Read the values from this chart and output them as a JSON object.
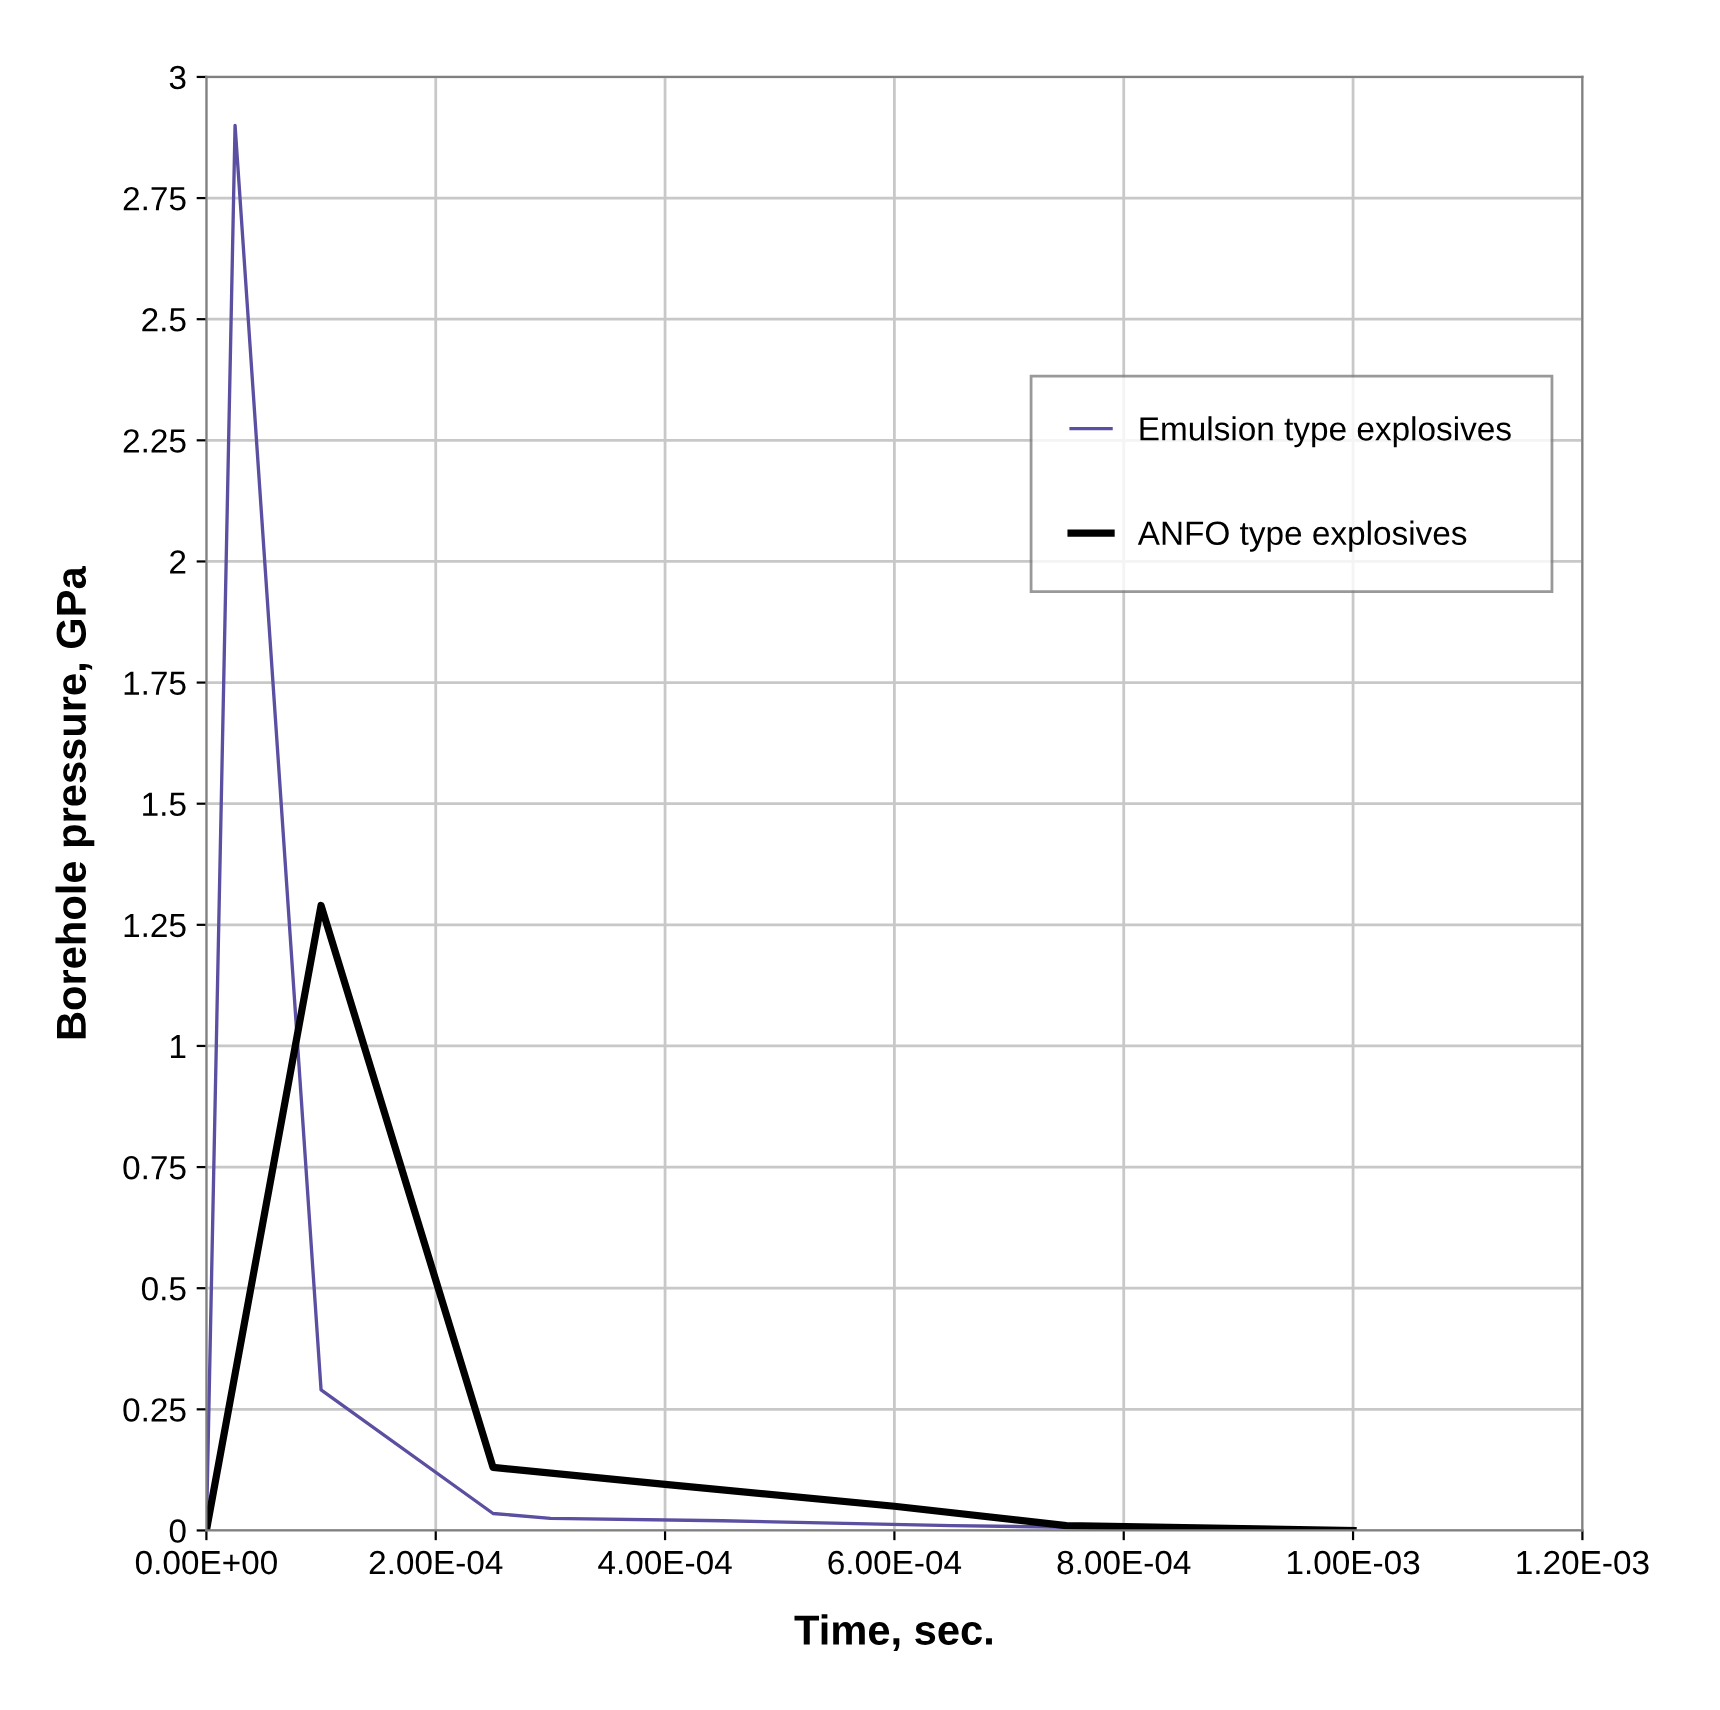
{
  "chart_data": {
    "type": "line",
    "xlabel": "Time, sec.",
    "ylabel": "Borehole pressure, GPa",
    "xlim": [
      0,
      0.0012
    ],
    "ylim": [
      0,
      3
    ],
    "xticks": [
      {
        "value": 0,
        "label": "0.00E+00"
      },
      {
        "value": 0.0002,
        "label": "2.00E-04"
      },
      {
        "value": 0.0004,
        "label": "4.00E-04"
      },
      {
        "value": 0.0006,
        "label": "6.00E-04"
      },
      {
        "value": 0.0008,
        "label": "8.00E-04"
      },
      {
        "value": 0.001,
        "label": "1.00E-03"
      },
      {
        "value": 0.0012,
        "label": "1.20E-03"
      }
    ],
    "yticks": [
      0,
      0.25,
      0.5,
      0.75,
      1,
      1.25,
      1.5,
      1.75,
      2,
      2.25,
      2.5,
      2.75,
      3
    ],
    "grid": true,
    "legend": "right",
    "marker": "none",
    "line_style": "solid",
    "series": [
      {
        "name": "Emulsion type explosives",
        "color": "#5a4fa0",
        "x": [
          0,
          2.5e-05,
          0.0001,
          0.00025,
          0.0003,
          0.00045,
          0.00065,
          0.0008,
          0.001
        ],
        "values": [
          0,
          2.9,
          0.29,
          0.035,
          0.025,
          0.02,
          0.01,
          0.005,
          0
        ]
      },
      {
        "name": "ANFO type explosives",
        "color": "#000000",
        "x": [
          0,
          0.0001,
          0.00025,
          0.0004,
          0.0006,
          0.00075,
          0.001
        ],
        "values": [
          0,
          1.29,
          0.13,
          0.095,
          0.05,
          0.01,
          0
        ]
      }
    ]
  }
}
